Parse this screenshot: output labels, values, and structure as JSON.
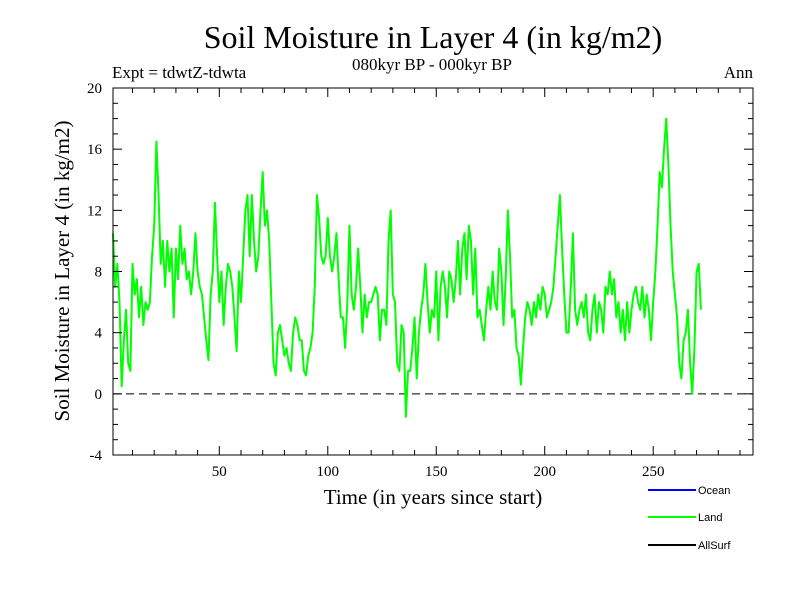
{
  "chart_data": {
    "type": "line",
    "title": "Soil Moisture in Layer 4 (in kg/m2)",
    "subtitle": "080kyr BP - 000kyr BP",
    "experiment_label": "Expt = tdwtZ-tdwta",
    "season_label": "Ann",
    "xlabel": "Time (in years since start)",
    "ylabel": "Soil Moisture in Layer 4 (in kg/m2)",
    "xlim": [
      1,
      296
    ],
    "ylim": [
      -4,
      20
    ],
    "x_ticks": [
      50,
      100,
      150,
      200,
      250
    ],
    "y_ticks": [
      -4,
      0,
      4,
      8,
      12,
      16,
      20
    ],
    "x_tick_labels": [
      "50",
      "100",
      "150",
      "200",
      "250"
    ],
    "y_tick_labels": [
      "-4",
      "0",
      "4",
      "8",
      "12",
      "16",
      "20"
    ],
    "zero_line": 0,
    "legend": [
      {
        "name": "Ocean",
        "color": "#0000ff"
      },
      {
        "name": "Land",
        "color": "#00ff00"
      },
      {
        "name": "AllSurf",
        "color": "#000000"
      }
    ],
    "series": [
      {
        "name": "Land",
        "color": "#00ff00",
        "x_start": 1,
        "x_step": 1,
        "values": [
          10.5,
          7.0,
          8.5,
          6.0,
          0.5,
          3.5,
          5.5,
          2.0,
          1.5,
          8.5,
          6.5,
          7.5,
          5.0,
          7.0,
          4.5,
          6.0,
          5.5,
          6.0,
          9.0,
          11.0,
          16.5,
          13.0,
          8.5,
          10.0,
          7.0,
          10.0,
          8.0,
          9.5,
          5.0,
          9.5,
          7.5,
          11.0,
          8.5,
          9.5,
          7.5,
          8.0,
          6.5,
          8.0,
          10.5,
          8.0,
          7.0,
          6.5,
          5.0,
          3.5,
          2.2,
          6.5,
          8.0,
          12.5,
          9.0,
          6.0,
          8.0,
          4.5,
          7.0,
          8.5,
          8.0,
          7.0,
          5.0,
          2.8,
          8.0,
          6.0,
          9.0,
          12.0,
          13.0,
          9.0,
          13.0,
          10.0,
          8.0,
          9.0,
          12.0,
          14.5,
          11.0,
          12.0,
          10.0,
          6.0,
          2.0,
          1.2,
          4.0,
          4.5,
          3.5,
          2.5,
          3.0,
          2.0,
          1.5,
          4.0,
          5.0,
          4.5,
          3.5,
          3.5,
          1.5,
          1.2,
          2.5,
          3.0,
          4.0,
          7.0,
          13.0,
          11.5,
          9.0,
          8.5,
          9.0,
          11.5,
          9.0,
          8.0,
          9.0,
          10.5,
          7.5,
          5.0,
          5.0,
          3.0,
          6.0,
          11.0,
          6.5,
          5.5,
          7.0,
          9.5,
          7.0,
          4.0,
          6.5,
          5.0,
          6.0,
          6.0,
          6.5,
          7.0,
          6.5,
          3.5,
          5.5,
          5.5,
          4.5,
          10.0,
          12.0,
          6.5,
          6.0,
          2.0,
          1.5,
          4.5,
          4.0,
          -1.5,
          1.5,
          1.5,
          3.0,
          5.0,
          1.0,
          4.0,
          5.5,
          6.5,
          8.5,
          6.0,
          4.0,
          5.5,
          5.0,
          8.0,
          3.5,
          7.0,
          8.0,
          7.0,
          5.0,
          8.0,
          7.5,
          6.0,
          7.5,
          10.0,
          6.5,
          9.5,
          10.5,
          7.5,
          11.0,
          10.0,
          6.5,
          9.5,
          5.0,
          5.5,
          4.5,
          3.5,
          5.5,
          7.0,
          5.5,
          8.0,
          6.0,
          5.5,
          9.5,
          8.0,
          4.5,
          7.5,
          12.0,
          9.0,
          5.0,
          5.5,
          3.0,
          2.5,
          0.6,
          3.0,
          5.0,
          6.0,
          5.5,
          4.5,
          6.0,
          5.0,
          6.5,
          5.5,
          7.0,
          6.5,
          5.0,
          5.5,
          6.0,
          7.0,
          9.0,
          11.0,
          13.0,
          9.5,
          6.5,
          4.0,
          4.0,
          7.0,
          10.5,
          5.5,
          4.5,
          5.5,
          6.0,
          5.0,
          6.5,
          4.0,
          3.5,
          5.5,
          6.5,
          4.0,
          6.0,
          5.5,
          4.0,
          7.0,
          6.5,
          8.0,
          6.5,
          7.5,
          5.0,
          6.0,
          4.0,
          5.5,
          3.5,
          6.0,
          4.0,
          5.5,
          6.5,
          7.0,
          6.0,
          5.5,
          7.0,
          5.0,
          6.5,
          5.5,
          3.5,
          6.0,
          8.0,
          11.0,
          14.5,
          13.5,
          16.0,
          18.0,
          15.0,
          11.0,
          8.0,
          6.5,
          5.0,
          2.0,
          1.0,
          3.5,
          4.0,
          5.5,
          2.0,
          0.0,
          3.0,
          8.0,
          8.5,
          5.5
        ]
      }
    ]
  }
}
